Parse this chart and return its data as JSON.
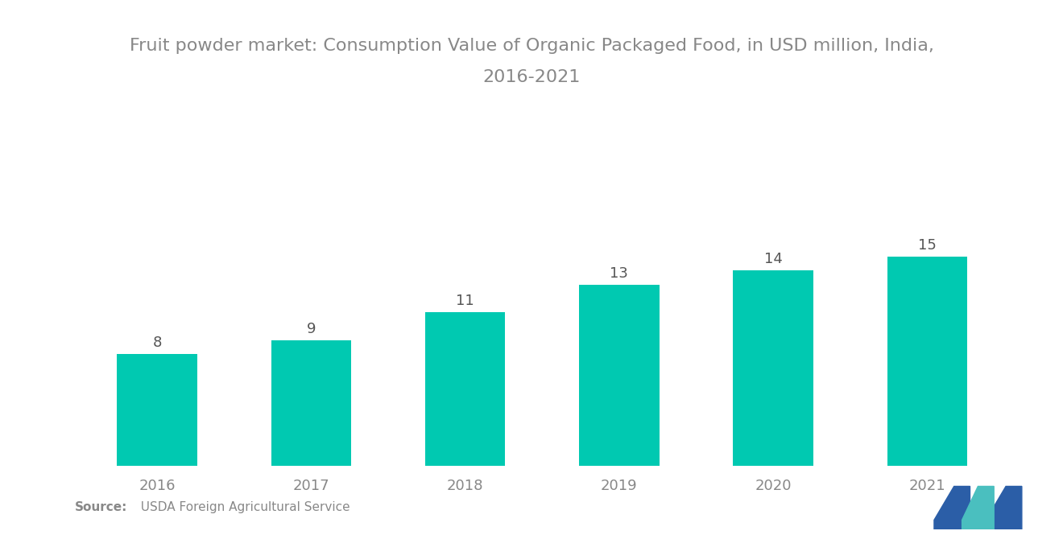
{
  "title_line1": "Fruit powder market: Consumption Value of Organic Packaged Food, in USD million, India,",
  "title_line2": "2016-2021",
  "categories": [
    "2016",
    "2017",
    "2018",
    "2019",
    "2020",
    "2021"
  ],
  "values": [
    8,
    9,
    11,
    13,
    14,
    15
  ],
  "bar_color": "#00C9B1",
  "bar_width": 0.52,
  "value_label_fontsize": 13,
  "title_fontsize": 16,
  "tick_fontsize": 13,
  "source_text": "  USDA Foreign Agricultural Service",
  "source_bold": "Source:",
  "background_color": "#ffffff",
  "ylim": [
    0,
    20
  ],
  "title_color": "#888888",
  "tick_color": "#888888",
  "value_label_color": "#555555",
  "source_fontsize": 11,
  "logo_color_dark": "#2B5EA7",
  "logo_color_light": "#4ABFBF"
}
